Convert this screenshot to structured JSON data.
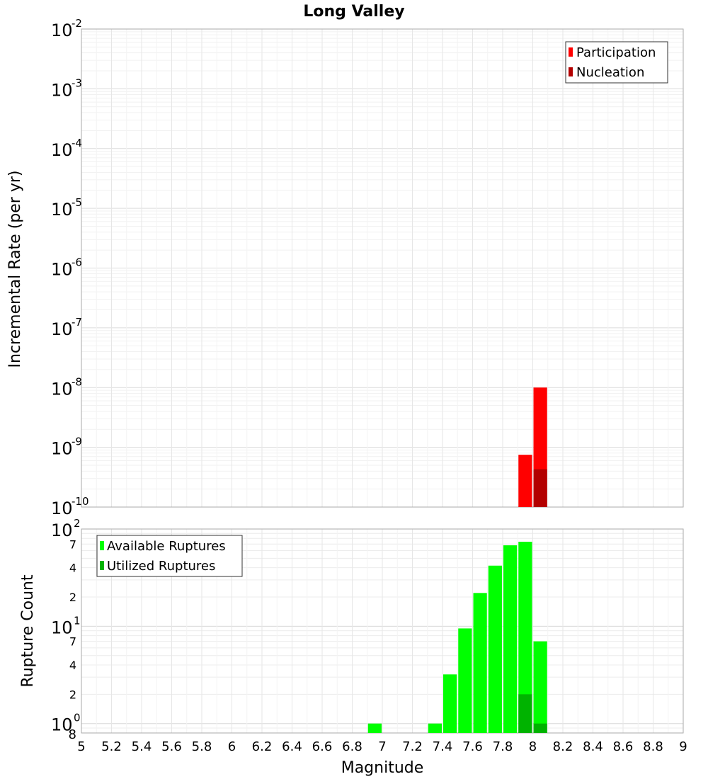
{
  "chart_data": [
    {
      "type": "bar",
      "title": "Long Valley",
      "ylabel": "Incremental Rate (per yr)",
      "y_scale": "log",
      "ylim": [
        1e-10,
        0.01
      ],
      "grid": true,
      "legend_position": "top-right",
      "series": [
        {
          "name": "Participation",
          "color": "#ff0000",
          "x": [
            7.95,
            8.05
          ],
          "values": [
            7.5e-10,
            1e-08
          ]
        },
        {
          "name": "Nucleation",
          "color": "#b30000",
          "x": [
            8.05
          ],
          "values": [
            4.3e-10
          ]
        }
      ]
    },
    {
      "type": "bar",
      "xlabel": "Magnitude",
      "ylabel": "Rupture Count",
      "y_scale": "log",
      "ylim": [
        0.8,
        100
      ],
      "grid": true,
      "legend_position": "top-left",
      "xlim": [
        5,
        9
      ],
      "x_ticks": [
        "5",
        "5.2",
        "5.4",
        "5.6",
        "5.8",
        "6",
        "6.2",
        "6.4",
        "6.6",
        "6.8",
        "7",
        "7.2",
        "7.4",
        "7.6",
        "7.8",
        "8",
        "8.2",
        "8.4",
        "8.6",
        "8.8",
        "9"
      ],
      "series": [
        {
          "name": "Available Ruptures",
          "color": "#00ff00",
          "x": [
            6.95,
            7.35,
            7.45,
            7.55,
            7.65,
            7.75,
            7.85,
            7.95,
            8.05
          ],
          "values": [
            1,
            1,
            3.2,
            9.5,
            22,
            42,
            68,
            74,
            7
          ]
        },
        {
          "name": "Utilized Ruptures",
          "color": "#00b300",
          "x": [
            7.95,
            8.05
          ],
          "values": [
            2,
            1
          ]
        }
      ]
    }
  ]
}
